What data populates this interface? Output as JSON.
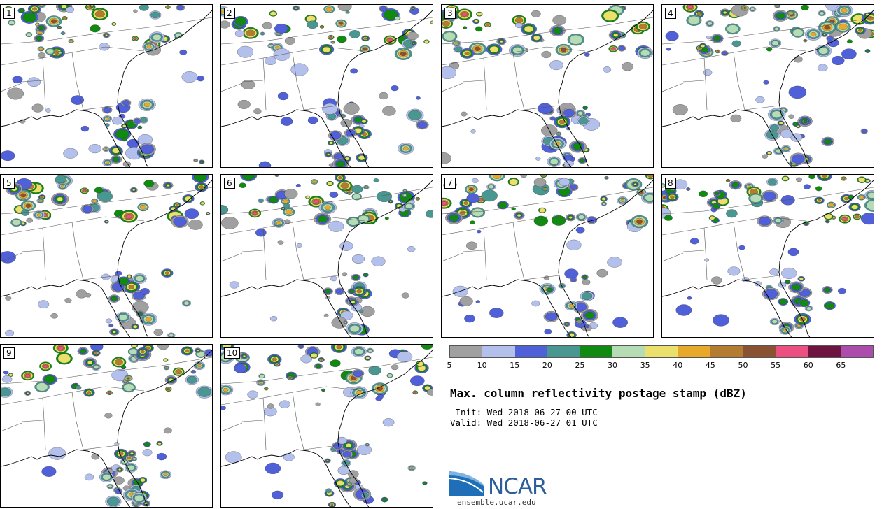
{
  "panels": [
    {
      "label": "1"
    },
    {
      "label": "2"
    },
    {
      "label": "3"
    },
    {
      "label": "4"
    },
    {
      "label": "5"
    },
    {
      "label": "6"
    },
    {
      "label": "7"
    },
    {
      "label": "8"
    },
    {
      "label": "9"
    },
    {
      "label": "10"
    }
  ],
  "legend": {
    "colors": [
      "#a0a0a0",
      "#b4c0ec",
      "#5060d8",
      "#4a9690",
      "#118a11",
      "#b6dcb6",
      "#ece06c",
      "#e8a82a",
      "#b47c30",
      "#8a5232",
      "#ec5080",
      "#6e1440",
      "#ac4cac"
    ],
    "ticks": [
      "5",
      "10",
      "15",
      "20",
      "25",
      "30",
      "35",
      "40",
      "45",
      "50",
      "55",
      "60",
      "65"
    ]
  },
  "title": "Max. column reflectivity postage stamp (dBZ)",
  "init_line": " Init: Wed 2018-06-27 00 UTC",
  "valid_line": "Valid: Wed 2018-06-27 01 UTC",
  "logo": {
    "text": "NCAR",
    "url": "ensemble.ucar.edu"
  }
}
